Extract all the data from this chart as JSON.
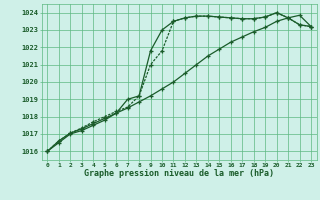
{
  "title": "Graphe pression niveau de la mer (hPa)",
  "bg_color": "#cff0e8",
  "grid_color": "#5db882",
  "line_color": "#1a5c2a",
  "x_labels": [
    "0",
    "1",
    "2",
    "3",
    "4",
    "5",
    "6",
    "7",
    "8",
    "9",
    "10",
    "11",
    "12",
    "13",
    "14",
    "15",
    "16",
    "17",
    "18",
    "19",
    "20",
    "21",
    "22",
    "23"
  ],
  "ylim": [
    1015.5,
    1024.5
  ],
  "yticks": [
    1016,
    1017,
    1018,
    1019,
    1020,
    1021,
    1022,
    1023,
    1024
  ],
  "line1_x": [
    0,
    1,
    2,
    3,
    4,
    5,
    6,
    7,
    8,
    9,
    10,
    11,
    12,
    13,
    14,
    15,
    16,
    17,
    18,
    19,
    20,
    21,
    22,
    23
  ],
  "line1_y": [
    1016.0,
    1016.5,
    1017.0,
    1017.2,
    1017.5,
    1017.8,
    1018.2,
    1019.0,
    1019.2,
    1021.8,
    1023.0,
    1023.5,
    1023.7,
    1023.8,
    1023.8,
    1023.75,
    1023.7,
    1023.65,
    1023.65,
    1023.75,
    1024.0,
    1023.7,
    1023.3,
    1023.2
  ],
  "line2_x": [
    0,
    1,
    2,
    3,
    4,
    5,
    6,
    7,
    8,
    9,
    10,
    11,
    12,
    13,
    14,
    15,
    16,
    17,
    18,
    19,
    20,
    21,
    22,
    23
  ],
  "line2_y": [
    1016.0,
    1016.6,
    1017.05,
    1017.3,
    1017.6,
    1017.9,
    1018.2,
    1018.5,
    1018.85,
    1019.2,
    1019.6,
    1020.0,
    1020.5,
    1021.0,
    1021.5,
    1021.9,
    1022.3,
    1022.6,
    1022.9,
    1023.15,
    1023.5,
    1023.7,
    1023.85,
    1023.2
  ],
  "line3_x": [
    0,
    1,
    2,
    3,
    4,
    5,
    6,
    7,
    8,
    9,
    10,
    11,
    12,
    13,
    14,
    15,
    16,
    17,
    18,
    19,
    20,
    21,
    22,
    23
  ],
  "line3_y": [
    1016.0,
    1016.6,
    1017.05,
    1017.35,
    1017.7,
    1018.0,
    1018.3,
    1018.55,
    1019.2,
    1021.0,
    1021.8,
    1023.5,
    1023.7,
    1023.8,
    1023.8,
    1023.75,
    1023.7,
    1023.65,
    1023.65,
    1023.75,
    1024.0,
    1023.7,
    1023.3,
    1023.2
  ]
}
